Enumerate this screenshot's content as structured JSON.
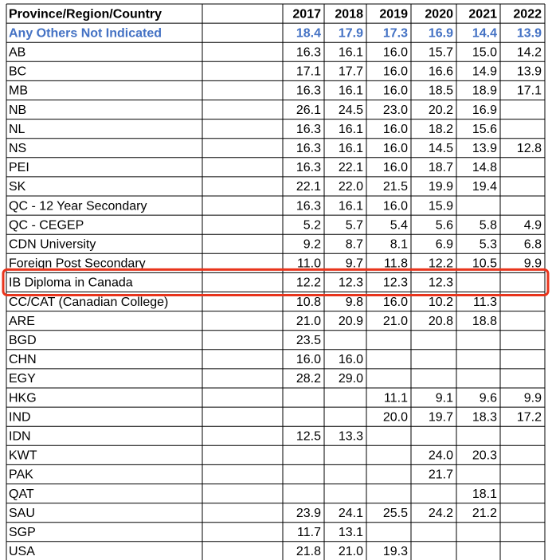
{
  "table": {
    "header": [
      "Province/Region/Country",
      "2017",
      "2018",
      "2019",
      "2020",
      "2021",
      "2022"
    ],
    "rows": [
      {
        "label": "Any Others Not Indicated",
        "values": [
          "18.4",
          "17.9",
          "17.3",
          "16.9",
          "14.4",
          "13.9"
        ]
      },
      {
        "label": "AB",
        "values": [
          "16.3",
          "16.1",
          "16.0",
          "15.7",
          "15.0",
          "14.2"
        ]
      },
      {
        "label": "BC",
        "values": [
          "17.1",
          "17.7",
          "16.0",
          "16.6",
          "14.9",
          "13.9"
        ]
      },
      {
        "label": "MB",
        "values": [
          "16.3",
          "16.1",
          "16.0",
          "18.5",
          "18.9",
          "17.1"
        ]
      },
      {
        "label": "NB",
        "values": [
          "26.1",
          "24.5",
          "23.0",
          "20.2",
          "16.9",
          null
        ]
      },
      {
        "label": "NL",
        "values": [
          "16.3",
          "16.1",
          "16.0",
          "18.2",
          "15.6",
          null
        ]
      },
      {
        "label": "NS",
        "values": [
          "16.3",
          "16.1",
          "16.0",
          "14.5",
          "13.9",
          "12.8"
        ]
      },
      {
        "label": "PEI",
        "values": [
          "16.3",
          "22.1",
          "16.0",
          "18.7",
          "14.8",
          null
        ]
      },
      {
        "label": "SK",
        "values": [
          "22.1",
          "22.0",
          "21.5",
          "19.9",
          "19.4",
          null
        ]
      },
      {
        "label": "QC - 12 Year Secondary",
        "values": [
          "16.3",
          "16.1",
          "16.0",
          "15.9",
          null,
          null
        ]
      },
      {
        "label": "QC - CEGEP",
        "values": [
          "5.2",
          "5.7",
          "5.4",
          "5.6",
          "5.8",
          "4.9"
        ]
      },
      {
        "label": "CDN University",
        "values": [
          "9.2",
          "8.7",
          "8.1",
          "6.9",
          "5.3",
          "6.8"
        ]
      },
      {
        "label": "Foreign Post Secondary",
        "values": [
          "11.0",
          "9.7",
          "11.8",
          "12.2",
          "10.5",
          "9.9"
        ]
      },
      {
        "label": "IB Diploma in Canada",
        "values": [
          "12.2",
          "12.3",
          "12.3",
          "12.3",
          null,
          null
        ]
      },
      {
        "label": "CC/CAT (Canadian College)",
        "values": [
          "10.8",
          "9.8",
          "16.0",
          "10.2",
          "11.3",
          null
        ]
      },
      {
        "label": "ARE",
        "values": [
          "21.0",
          "20.9",
          "21.0",
          "20.8",
          "18.8",
          null
        ]
      },
      {
        "label": "BGD",
        "values": [
          "23.5",
          null,
          null,
          null,
          null,
          null
        ]
      },
      {
        "label": "CHN",
        "values": [
          "16.0",
          "16.0",
          null,
          null,
          null,
          null
        ]
      },
      {
        "label": "EGY",
        "values": [
          "28.2",
          "29.0",
          null,
          null,
          null,
          null
        ]
      },
      {
        "label": "HKG",
        "values": [
          null,
          null,
          "11.1",
          "9.1",
          "9.6",
          "9.9"
        ]
      },
      {
        "label": "IND",
        "values": [
          null,
          null,
          "20.0",
          "19.7",
          "18.3",
          "17.2"
        ]
      },
      {
        "label": "IDN",
        "values": [
          "12.5",
          "13.3",
          null,
          null,
          null,
          null
        ]
      },
      {
        "label": "KWT",
        "values": [
          null,
          null,
          null,
          "24.0",
          "20.3",
          null
        ]
      },
      {
        "label": "PAK",
        "values": [
          null,
          null,
          null,
          "21.7",
          null,
          null
        ]
      },
      {
        "label": "QAT",
        "values": [
          null,
          null,
          null,
          null,
          "18.1",
          null
        ]
      },
      {
        "label": "SAU",
        "values": [
          "23.9",
          "24.1",
          "25.5",
          "24.2",
          "21.2",
          null
        ]
      },
      {
        "label": "SGP",
        "values": [
          "11.7",
          "13.1",
          null,
          null,
          null,
          null
        ]
      },
      {
        "label": "USA",
        "values": [
          "21.8",
          "21.0",
          "19.3",
          null,
          null,
          null
        ]
      }
    ]
  }
}
